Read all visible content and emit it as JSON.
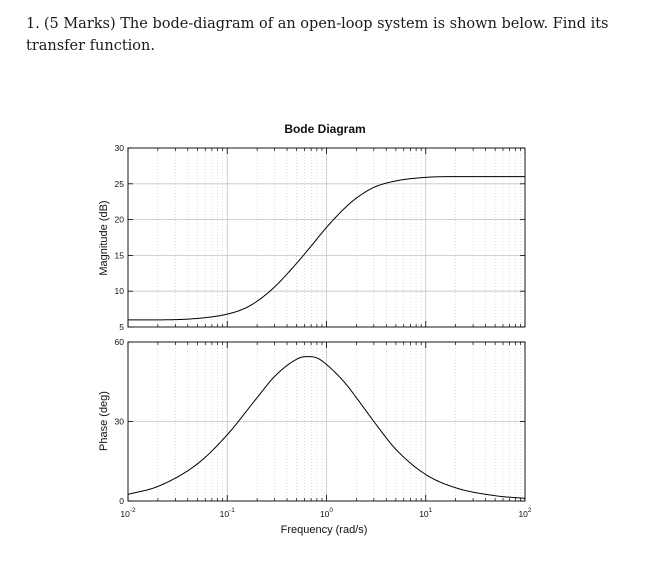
{
  "question": {
    "number": "1.",
    "text": "(5 Marks) The bode-diagram of an open-loop system is shown below. Find its transfer function."
  },
  "chart_data": {
    "type": "line",
    "title": "Bode Diagram",
    "xlabel": "Frequency (rad/s)",
    "xscale": "log",
    "xlim": [
      0.01,
      100
    ],
    "x_ticks": [
      {
        "base": "10",
        "exp": "-2"
      },
      {
        "base": "10",
        "exp": "-1"
      },
      {
        "base": "10",
        "exp": "0"
      },
      {
        "base": "10",
        "exp": "1"
      },
      {
        "base": "10",
        "exp": "2"
      }
    ],
    "grid": true,
    "line_color": "#000000",
    "subplots": [
      {
        "name": "magnitude",
        "ylabel": "Magnitude (dB)",
        "ylim": [
          5,
          30
        ],
        "y_ticks": [
          "5",
          "10",
          "15",
          "20",
          "25",
          "30"
        ],
        "series": [
          {
            "x": [
              0.01,
              0.02,
              0.05,
              0.1,
              0.15,
              0.2,
              0.3,
              0.5,
              0.7,
              1,
              1.5,
              2,
              3,
              5,
              10,
              20,
              50,
              100
            ],
            "values": [
              6.0,
              6.0,
              6.2,
              6.8,
              7.6,
              8.6,
              10.6,
              13.9,
              16.3,
              18.9,
              21.5,
              23.0,
              24.5,
              25.4,
              25.9,
              26.0,
              26.0,
              26.0
            ]
          }
        ]
      },
      {
        "name": "phase",
        "ylabel": "Phase (deg)",
        "ylim": [
          0,
          60
        ],
        "y_ticks": [
          "0",
          "30",
          "60"
        ],
        "series": [
          {
            "x": [
              0.01,
              0.02,
              0.05,
              0.1,
              0.2,
              0.3,
              0.5,
              0.63,
              0.8,
              1,
              1.5,
              2,
              3,
              5,
              10,
              20,
              50,
              100
            ],
            "values": [
              2.5,
              5.5,
              14,
              25,
              39,
              47,
              53.5,
              54.5,
              54,
              51.5,
              45,
              39,
              30,
              19.5,
              10,
              5,
              2,
              1
            ]
          }
        ]
      }
    ]
  }
}
